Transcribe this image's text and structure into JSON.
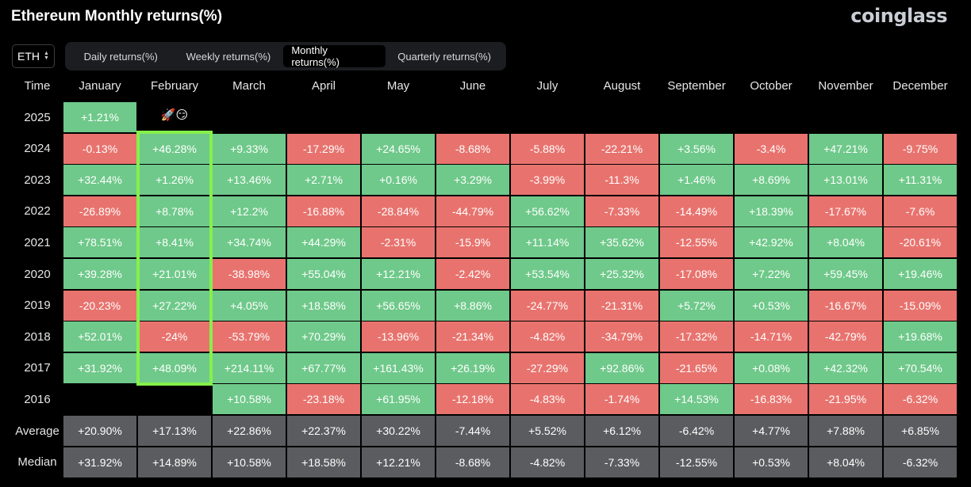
{
  "header": {
    "title": "Ethereum Monthly returns(%)",
    "brand": "coinglass"
  },
  "controls": {
    "coin": "ETH",
    "tabs": [
      {
        "label": "Daily returns(%)",
        "active": false
      },
      {
        "label": "Weekly returns(%)",
        "active": false
      },
      {
        "label": "Monthly returns(%)",
        "active": true
      },
      {
        "label": "Quarterly returns(%)",
        "active": false
      }
    ]
  },
  "annotation": {
    "text": "🚀😏"
  },
  "colors": {
    "positive": "#6fc98a",
    "negative": "#e8736e",
    "stat": "#5b5c5f",
    "highlight": "#86f04a"
  },
  "chart_data": {
    "type": "heatmap",
    "title": "Ethereum Monthly returns(%)",
    "row_header": "Time",
    "columns": [
      "January",
      "February",
      "March",
      "April",
      "May",
      "June",
      "July",
      "August",
      "September",
      "October",
      "November",
      "December"
    ],
    "rows": [
      {
        "label": "2025",
        "values": [
          "+1.21%",
          "",
          "",
          "",
          "",
          "",
          "",
          "",
          "",
          "",
          "",
          ""
        ]
      },
      {
        "label": "2024",
        "values": [
          "-0.13%",
          "+46.28%",
          "+9.33%",
          "-17.29%",
          "+24.65%",
          "-8.68%",
          "-5.88%",
          "-22.21%",
          "+3.56%",
          "-3.4%",
          "+47.21%",
          "-9.75%"
        ]
      },
      {
        "label": "2023",
        "values": [
          "+32.44%",
          "+1.26%",
          "+13.46%",
          "+2.71%",
          "+0.16%",
          "+3.29%",
          "-3.99%",
          "-11.3%",
          "+1.46%",
          "+8.69%",
          "+13.01%",
          "+11.31%"
        ]
      },
      {
        "label": "2022",
        "values": [
          "-26.89%",
          "+8.78%",
          "+12.2%",
          "-16.88%",
          "-28.84%",
          "-44.79%",
          "+56.62%",
          "-7.33%",
          "-14.49%",
          "+18.39%",
          "-17.67%",
          "-7.6%"
        ]
      },
      {
        "label": "2021",
        "values": [
          "+78.51%",
          "+8.41%",
          "+34.74%",
          "+44.29%",
          "-2.31%",
          "-15.9%",
          "+11.14%",
          "+35.62%",
          "-12.55%",
          "+42.92%",
          "+8.04%",
          "-20.61%"
        ]
      },
      {
        "label": "2020",
        "values": [
          "+39.28%",
          "+21.01%",
          "-38.98%",
          "+55.04%",
          "+12.21%",
          "-2.42%",
          "+53.54%",
          "+25.32%",
          "-17.08%",
          "+7.22%",
          "+59.45%",
          "+19.46%"
        ]
      },
      {
        "label": "2019",
        "values": [
          "-20.23%",
          "+27.22%",
          "+4.05%",
          "+18.58%",
          "+56.65%",
          "+8.86%",
          "-24.77%",
          "-21.31%",
          "+5.72%",
          "+0.53%",
          "-16.67%",
          "-15.09%"
        ]
      },
      {
        "label": "2018",
        "values": [
          "+52.01%",
          "-24%",
          "-53.79%",
          "+70.29%",
          "-13.96%",
          "-21.34%",
          "-4.82%",
          "-34.79%",
          "-17.32%",
          "-14.71%",
          "-42.79%",
          "+19.68%"
        ]
      },
      {
        "label": "2017",
        "values": [
          "+31.92%",
          "+48.09%",
          "+214.11%",
          "+67.77%",
          "+161.43%",
          "+26.19%",
          "-27.29%",
          "+92.86%",
          "-21.65%",
          "+0.08%",
          "+42.32%",
          "+70.54%"
        ]
      },
      {
        "label": "2016",
        "values": [
          "",
          "",
          "+10.58%",
          "-23.18%",
          "+61.95%",
          "-12.18%",
          "-4.83%",
          "-1.74%",
          "+14.53%",
          "-16.83%",
          "-21.95%",
          "-6.32%"
        ]
      }
    ],
    "summary": [
      {
        "label": "Average",
        "values": [
          "+20.90%",
          "+17.13%",
          "+22.86%",
          "+22.37%",
          "+30.22%",
          "-7.44%",
          "+5.52%",
          "+6.12%",
          "-6.42%",
          "+4.77%",
          "+7.88%",
          "+6.85%"
        ]
      },
      {
        "label": "Median",
        "values": [
          "+31.92%",
          "+14.89%",
          "+10.58%",
          "+18.58%",
          "+12.21%",
          "-8.68%",
          "-4.82%",
          "-7.33%",
          "-12.55%",
          "+0.53%",
          "+8.04%",
          "-6.32%"
        ]
      }
    ],
    "highlight_column": "February"
  }
}
